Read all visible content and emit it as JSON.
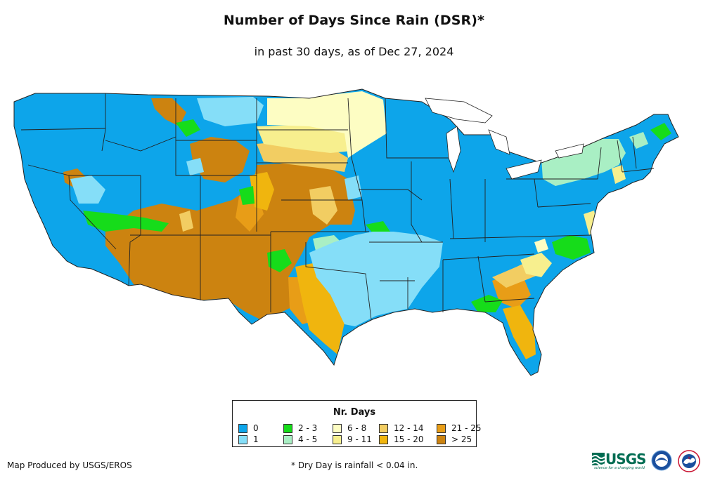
{
  "title": "Number of Days Since Rain (DSR)*",
  "subtitle": "in past 30 days, as of Dec 27, 2024",
  "legend": {
    "title": "Nr. Days",
    "items": [
      {
        "label": "0",
        "color": "#0da5ea"
      },
      {
        "label": "1",
        "color": "#85def8"
      },
      {
        "label": "2 - 3",
        "color": "#16dc1a"
      },
      {
        "label": "4 - 5",
        "color": "#a9efc4"
      },
      {
        "label": "6 - 8",
        "color": "#fdfdc3"
      },
      {
        "label": "9 - 11",
        "color": "#f7ef8e"
      },
      {
        "label": "12 - 14",
        "color": "#f2cd62"
      },
      {
        "label": "15 - 20",
        "color": "#f0b50e"
      },
      {
        "label": "21 - 25",
        "color": "#e89d17"
      },
      {
        "label": "> 25",
        "color": "#cc8310"
      }
    ]
  },
  "credit": "Map Produced by USGS/EROS",
  "footnote": "* Dry Day is rainfall < 0.04 in.",
  "logos": {
    "usgs_text": "USGS",
    "usgs_tagline": "science for a changing world",
    "noaa_text": "NOAA"
  }
}
